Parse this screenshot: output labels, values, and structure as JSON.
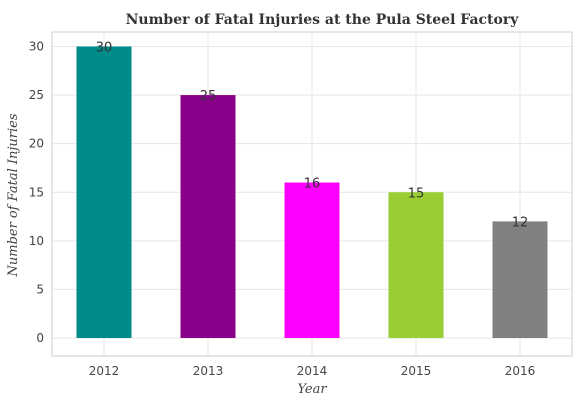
{
  "chart_data": {
    "type": "bar",
    "title": "Number of Fatal Injuries at the Pula Steel Factory",
    "xlabel": "Year",
    "ylabel": "Number of Fatal Injuries",
    "categories": [
      "2012",
      "2013",
      "2014",
      "2015",
      "2016"
    ],
    "values": [
      30,
      25,
      16,
      15,
      12
    ],
    "colors": [
      "#008b8b",
      "#8b008b",
      "#ff00ff",
      "#9acd32",
      "#808080"
    ],
    "ylim": [
      0,
      32
    ],
    "yticks": [
      0,
      5,
      10,
      15,
      20,
      25,
      30
    ],
    "grid": true,
    "legend": "none"
  }
}
